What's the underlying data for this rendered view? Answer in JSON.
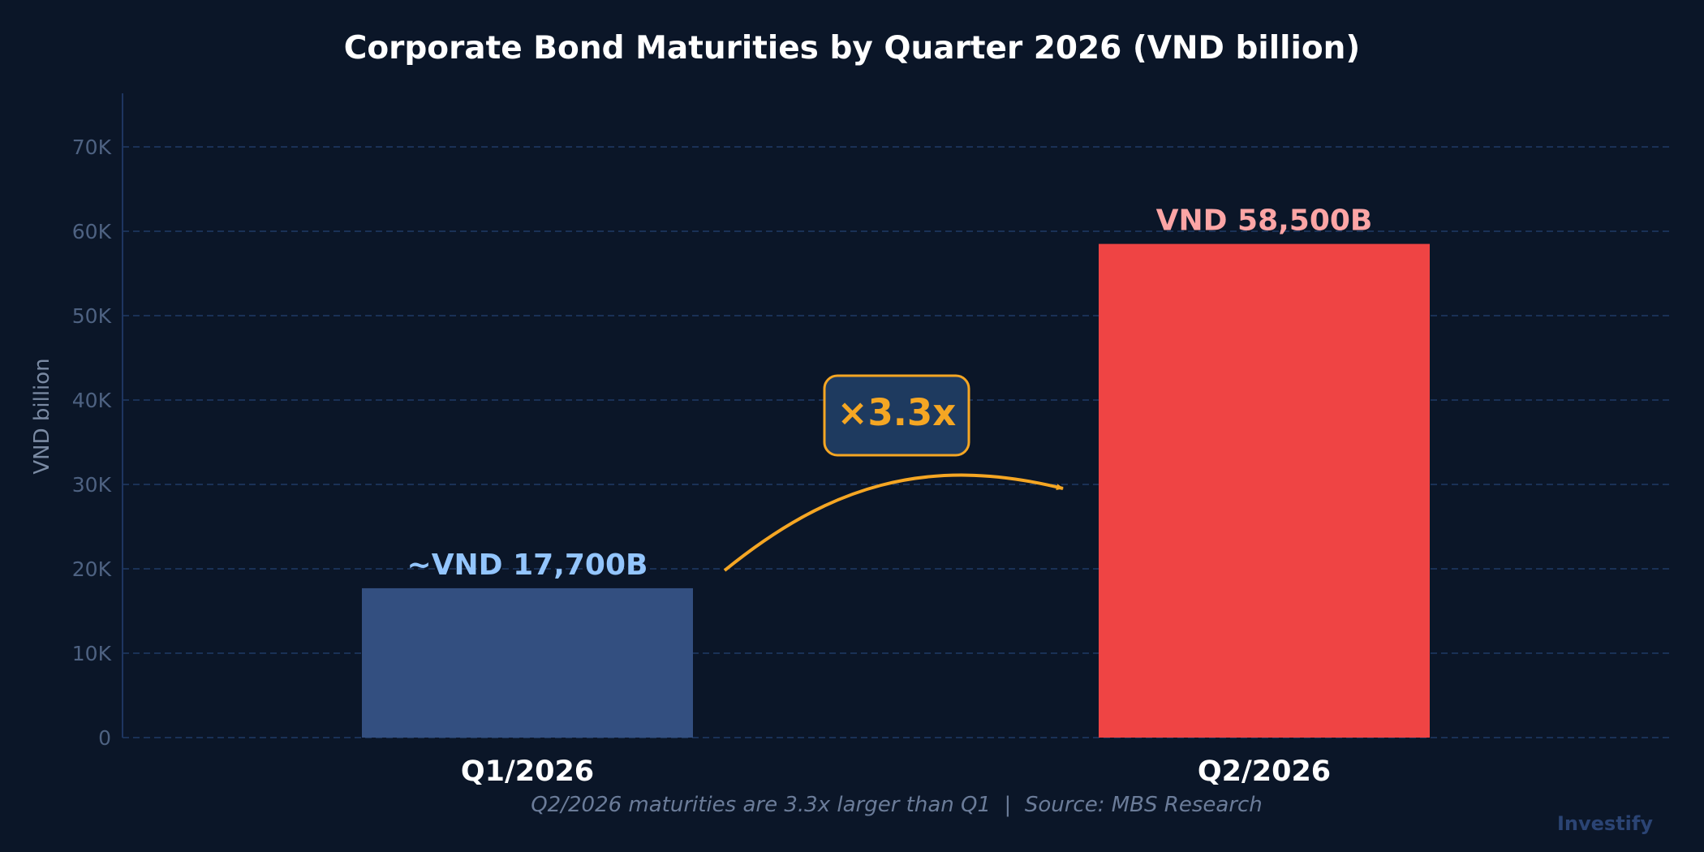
{
  "chart_data": {
    "type": "bar",
    "title": "Corporate Bond Maturities by Quarter 2026 (VND billion)",
    "xlabel": "",
    "ylabel": "VND billion",
    "categories": [
      "Q1/2026",
      "Q2/2026"
    ],
    "values": [
      17700,
      58500
    ],
    "value_labels": [
      "~VND 17,700B",
      "VND 58,500B"
    ],
    "ylim": [
      0,
      76000
    ],
    "yticks": [
      0,
      10000,
      20000,
      30000,
      40000,
      50000,
      60000,
      70000
    ],
    "ytick_labels": [
      "0",
      "10K",
      "20K",
      "30K",
      "40K",
      "50K",
      "60K",
      "70K"
    ],
    "grid": true,
    "annotation": {
      "text": "×3.3x",
      "from": "Q1/2026",
      "to": "Q2/2026"
    },
    "footnote": "Q2/2026 maturities are 3.3x larger than Q1  |  Source: MBS Research",
    "brand": "Investify"
  },
  "colors": {
    "background": "#0b1628",
    "title": "#ffffff",
    "gridline": "#1f3a66",
    "axis": "#1e3560",
    "tick_label": "#4e6282",
    "ylabel": "#7a8aa3",
    "category_label": "#ffffff",
    "bar_q1": "#334f80",
    "bar_q2": "#ef4444",
    "label_q1": "#93c5fd",
    "label_q2": "#fca5a5",
    "annotation_accent": "#f5a623",
    "annotation_fill": "#1e3a5f",
    "footnote": "#6b7c99",
    "brand": "#2b4474"
  }
}
